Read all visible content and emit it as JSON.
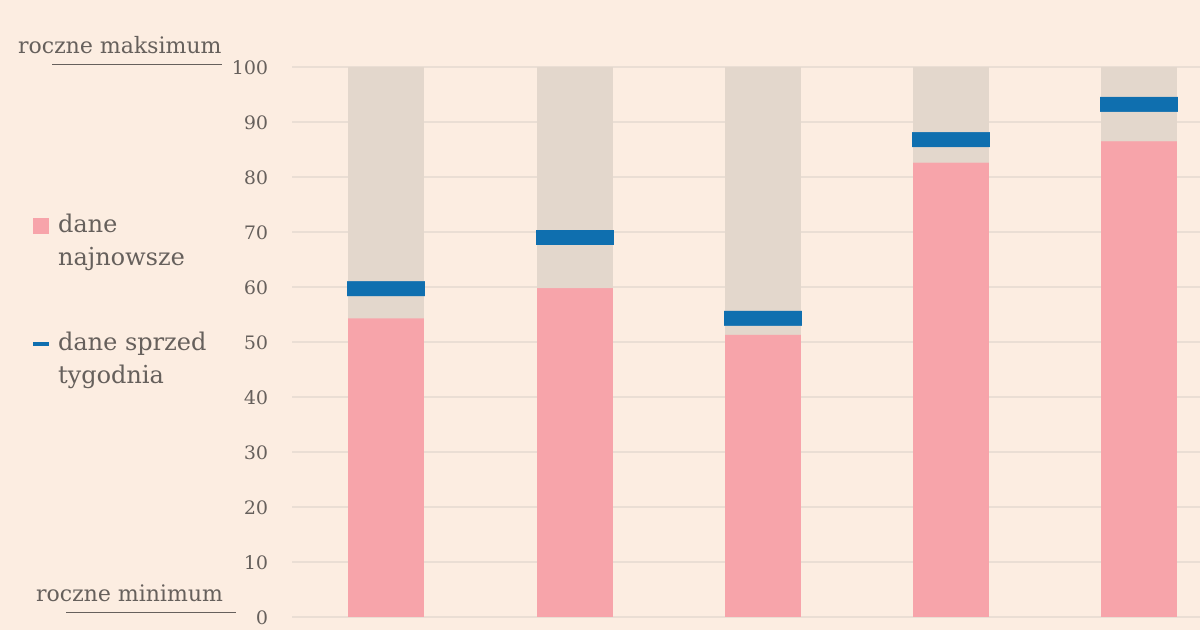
{
  "labels": {
    "max": "roczne maksimum",
    "min": "roczne minimum"
  },
  "legend": [
    {
      "name": "dane najnowsze",
      "color": "#F7A4AA"
    },
    {
      "name": "dane sprzed tygodnia",
      "color": "#0F6FAF"
    }
  ],
  "colors": {
    "background": "#FCEDE1",
    "range": "#E3D7CC",
    "latest": "#F7A4AA",
    "week_ago": "#0F6FAF",
    "grid": "#D9D0C8",
    "text": "#66605C"
  },
  "chart_data": {
    "type": "bar",
    "title": "",
    "xlabel": "",
    "ylabel": "",
    "ylim": [
      0,
      100
    ],
    "yticks": [
      0,
      10,
      20,
      30,
      40,
      50,
      60,
      70,
      80,
      90,
      100
    ],
    "grid": true,
    "legend_position": "left",
    "categories": [
      "",
      "",
      "",
      "",
      ""
    ],
    "series": [
      {
        "name": "dane najnowsze",
        "values": [
          54.3,
          59.8,
          51.3,
          82.6,
          86.5
        ]
      },
      {
        "name": "dane sprzed tygodnia",
        "values": [
          59.7,
          69.0,
          54.3,
          86.8,
          93.2
        ]
      }
    ],
    "range": [
      0,
      100
    ]
  }
}
